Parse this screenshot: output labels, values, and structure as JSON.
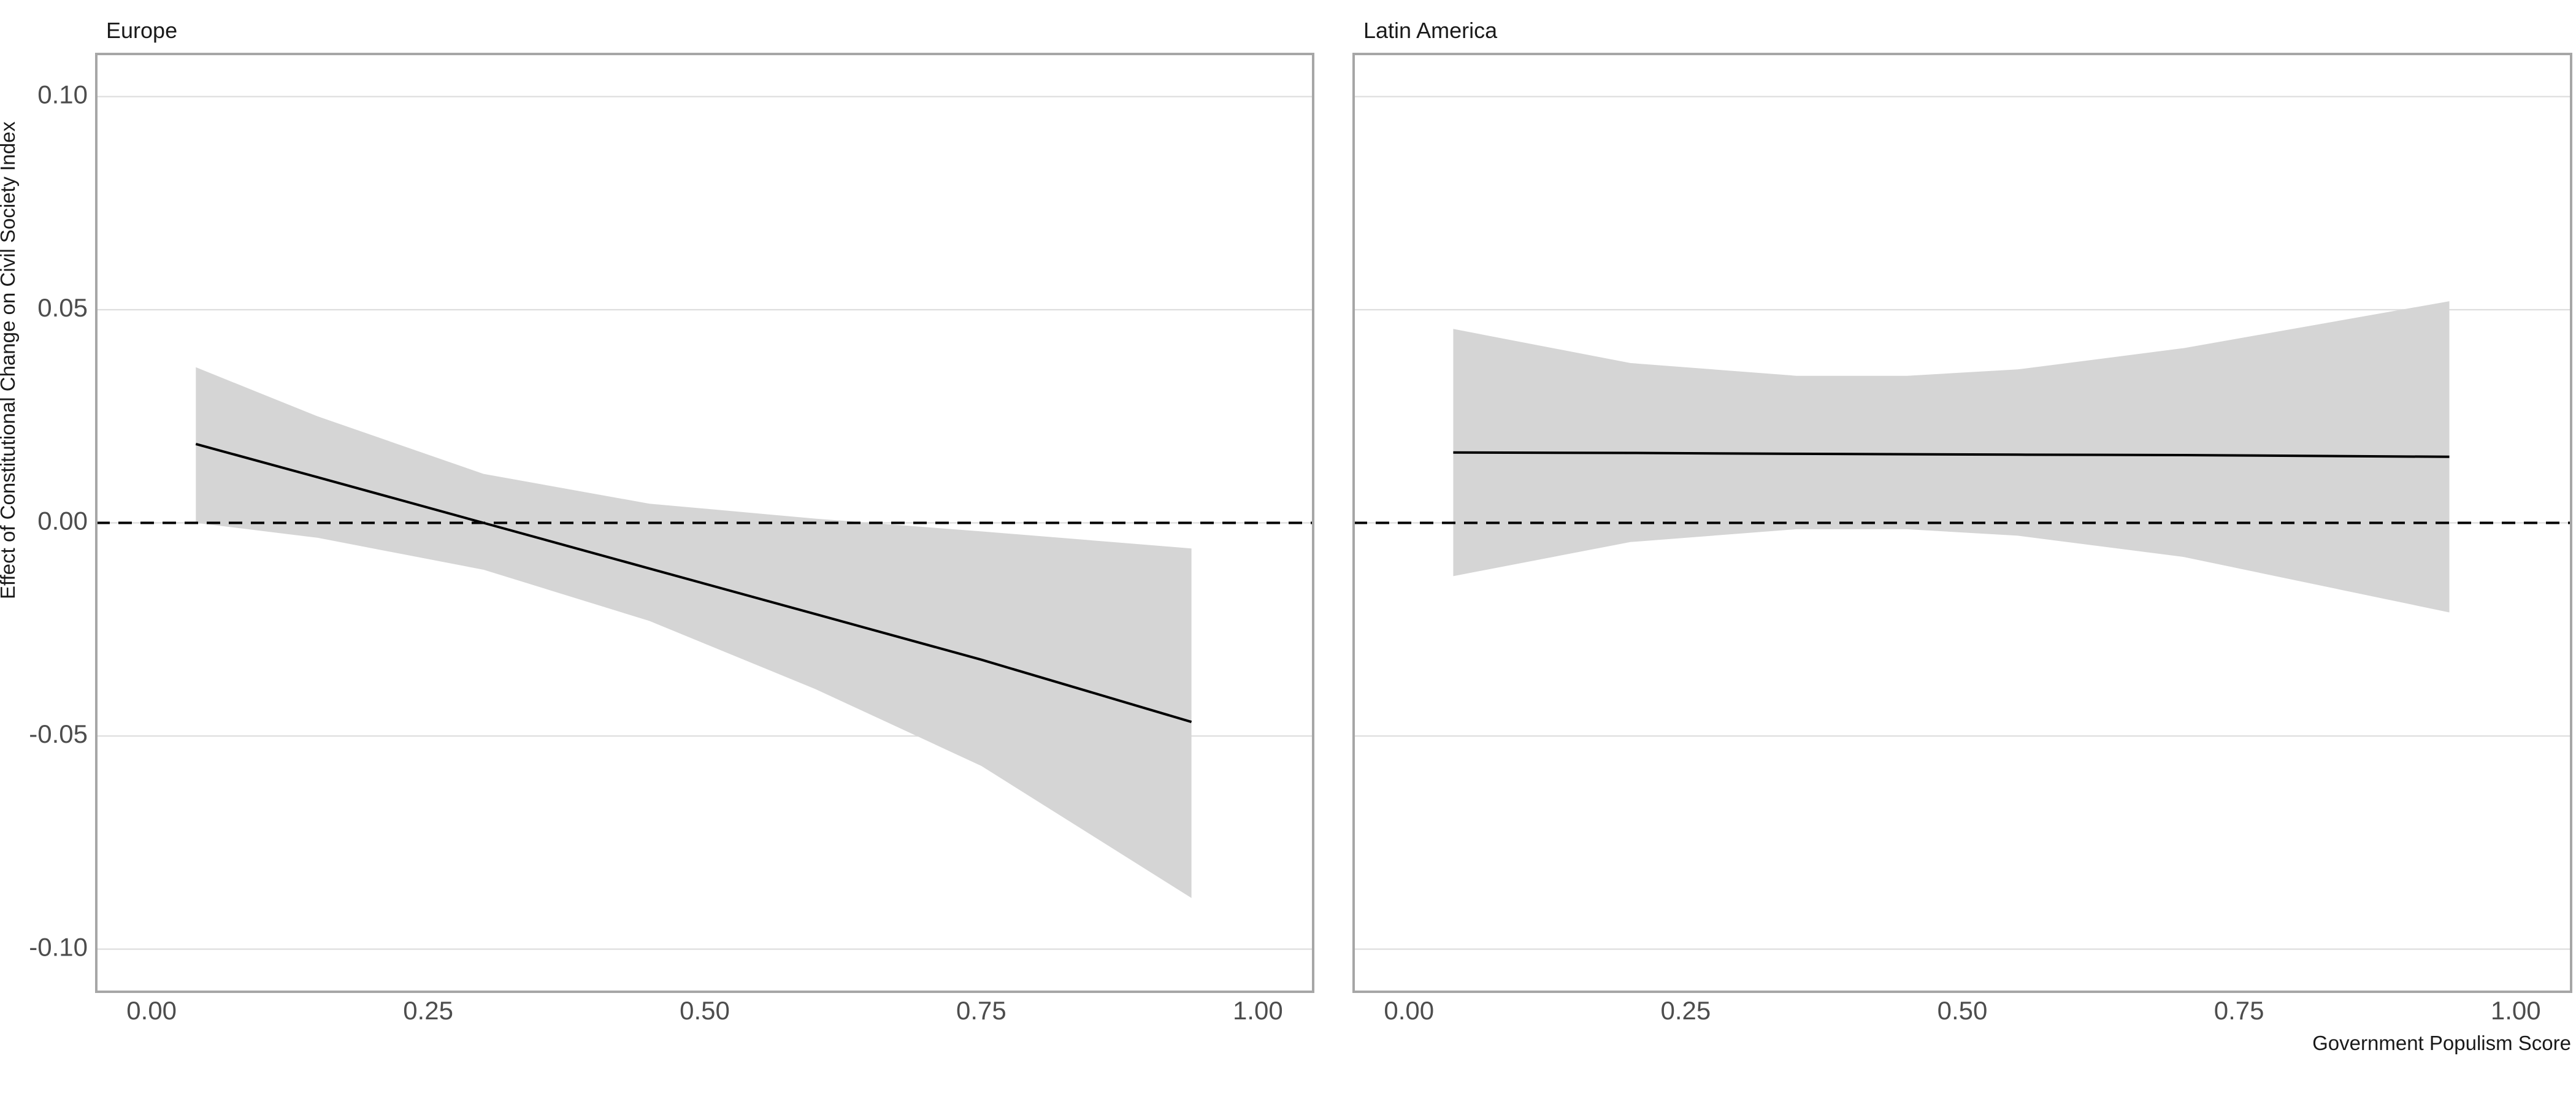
{
  "chart_data": {
    "type": "line",
    "xlabel": "Government Populism Score",
    "ylabel": "Effect of Constitutional Change on Civil Society Index",
    "xlim": [
      -0.05,
      1.05
    ],
    "ylim": [
      -0.11,
      0.11
    ],
    "x_ticks": [
      0,
      0.25,
      0.5,
      0.75,
      1
    ],
    "x_tick_labels": [
      "0.00",
      "0.25",
      "0.50",
      "0.75",
      "1.00"
    ],
    "y_ticks": [
      -0.1,
      -0.05,
      0,
      0.05,
      0.1
    ],
    "y_tick_labels": [
      "-0.10",
      "-0.05",
      "0.00",
      "0.05",
      "0.10"
    ],
    "grid": "horizontal",
    "reference_line": {
      "y": 0,
      "style": "dashed"
    },
    "panels": [
      {
        "title": "Europe",
        "x": [
          0.04,
          0.15,
          0.3,
          0.45,
          0.6,
          0.75,
          0.94
        ],
        "estimate": [
          0.0185,
          0.0107,
          0.0,
          -0.0107,
          -0.0214,
          -0.0321,
          -0.0467
        ],
        "lower": [
          0.0,
          -0.0035,
          -0.011,
          -0.023,
          -0.039,
          -0.057,
          -0.088
        ],
        "upper": [
          0.0365,
          0.025,
          0.0115,
          0.0045,
          0.001,
          -0.002,
          -0.006
        ]
      },
      {
        "title": "Latin America",
        "x": [
          0.04,
          0.2,
          0.35,
          0.45,
          0.55,
          0.7,
          0.94
        ],
        "estimate": [
          0.0165,
          0.0164,
          0.0162,
          0.0161,
          0.016,
          0.0159,
          0.0155
        ],
        "lower": [
          -0.0125,
          -0.0045,
          -0.0015,
          -0.0015,
          -0.003,
          -0.008,
          -0.021
        ],
        "upper": [
          0.0455,
          0.0375,
          0.0345,
          0.0345,
          0.036,
          0.041,
          0.052
        ]
      }
    ]
  }
}
